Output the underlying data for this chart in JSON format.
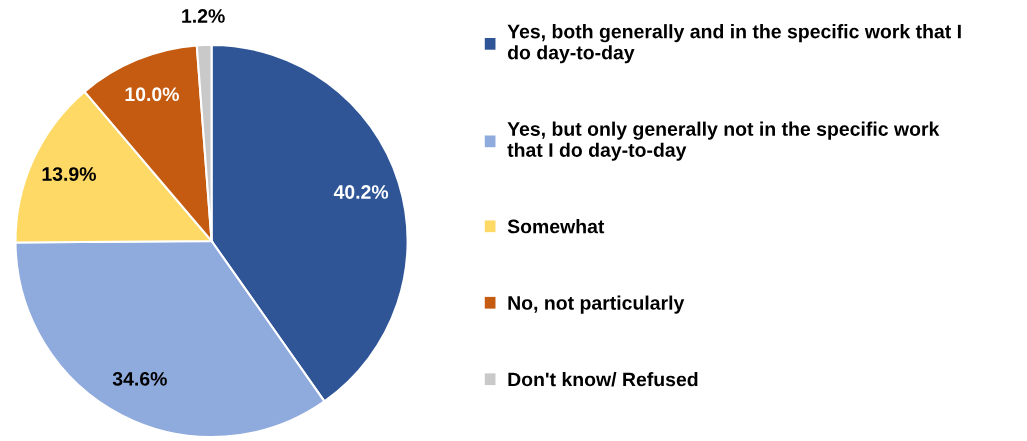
{
  "chart_data": {
    "type": "pie",
    "categories": [
      "Yes, both generally and in the specific work that I\ndo day-to-day",
      "Yes, but only generally not in the specific work\nthat I do day-to-day",
      "Somewhat",
      "No, not particularly",
      "Don't know/ Refused"
    ],
    "values": [
      40.2,
      34.6,
      13.9,
      10.0,
      1.2
    ],
    "value_labels": [
      "40.2%",
      "34.6%",
      "13.9%",
      "10.0%",
      "1.2%"
    ],
    "colors": [
      "#2f5597",
      "#8faadc",
      "#ffd966",
      "#c55a11",
      "#c9c9c9"
    ],
    "legend": "right"
  }
}
